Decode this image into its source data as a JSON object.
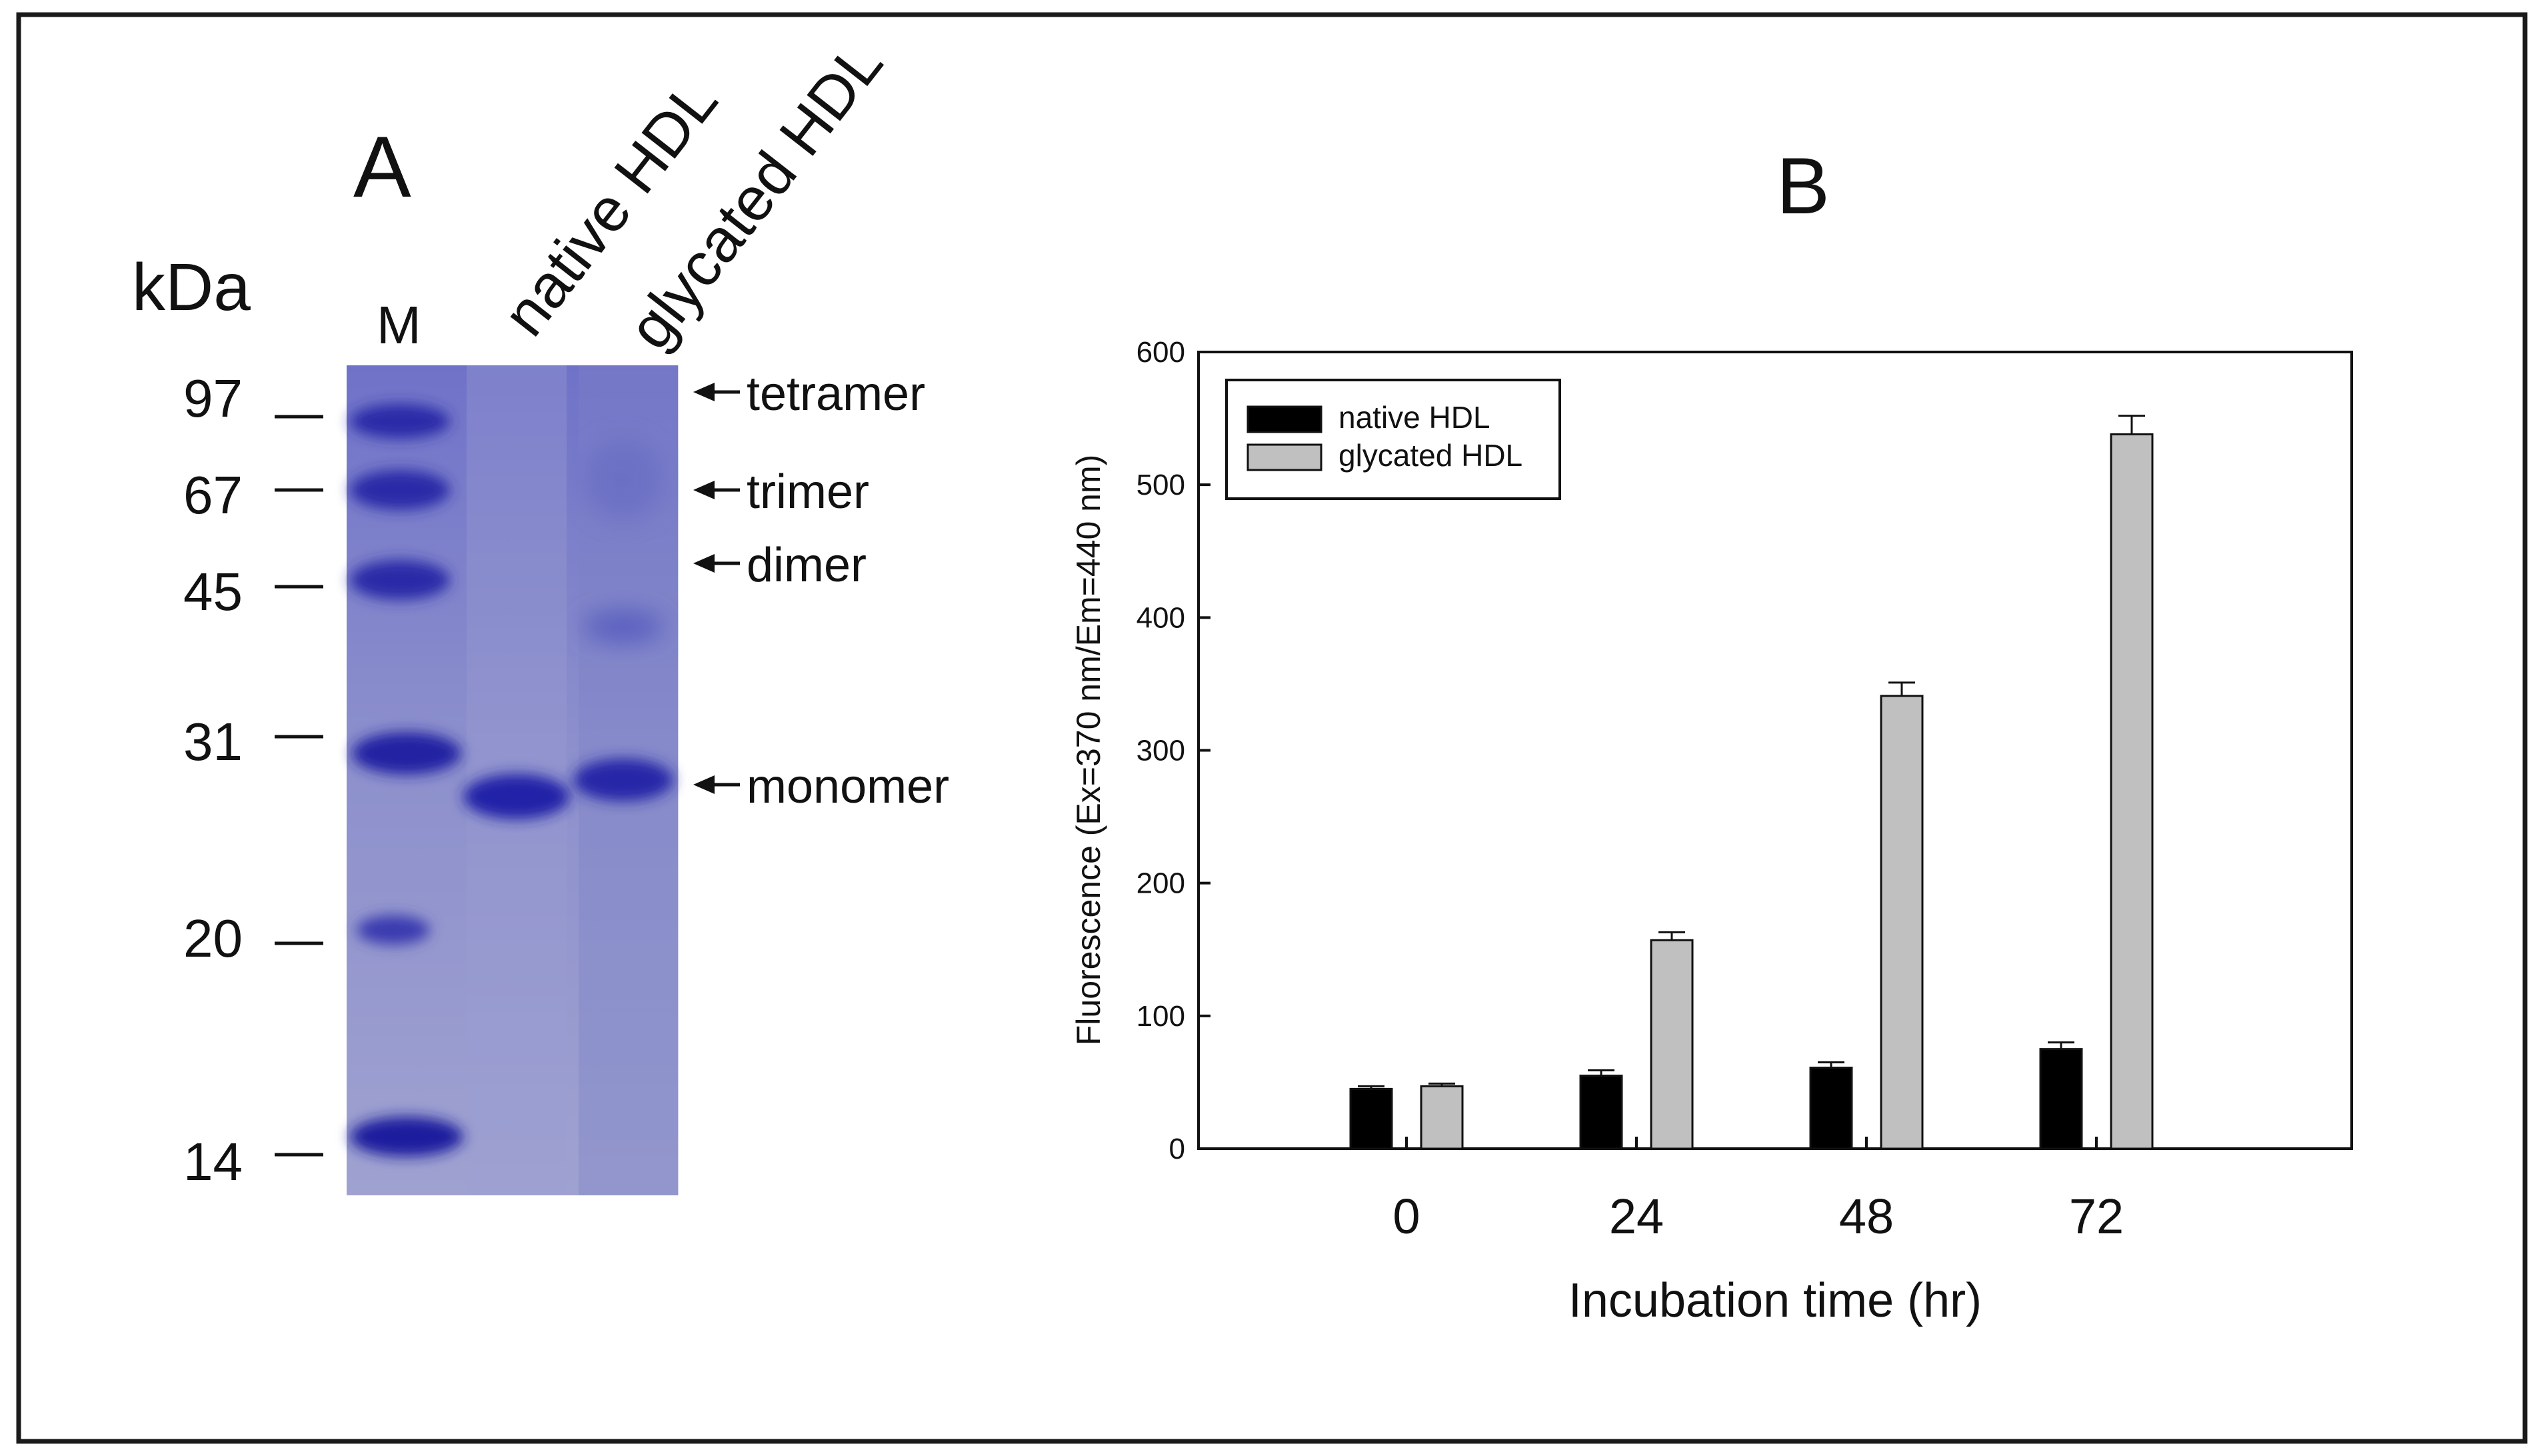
{
  "panel_a": {
    "label": "A",
    "unit_label": "kDa",
    "lanes": [
      "M",
      "native HDL",
      "glycated HDL"
    ],
    "marker_sizes": [
      "97",
      "67",
      "45",
      "31",
      "20",
      "14"
    ],
    "band_annotations": [
      "tetramer",
      "trimer",
      "dimer",
      "monomer"
    ],
    "colors": {
      "gel_background": "#8f93cc",
      "band": "#2f2fb0"
    }
  },
  "panel_b": {
    "label": "B"
  },
  "chart_data": {
    "type": "bar",
    "categories": [
      "0",
      "24",
      "48",
      "72"
    ],
    "series": [
      {
        "name": "native HDL",
        "color": "#000000",
        "values": [
          45,
          55,
          61,
          75
        ],
        "errors": [
          2,
          4,
          4,
          5
        ]
      },
      {
        "name": "glycated HDL",
        "color": "#c0c0c0",
        "values": [
          47,
          157,
          341,
          538
        ],
        "errors": [
          2,
          6,
          10,
          14
        ]
      }
    ],
    "xlabel": "Incubation time (hr)",
    "ylabel": "Fluorescence (Ex=370 nm/Em=440 nm)",
    "ylim": [
      0,
      600
    ],
    "yticks": [
      "0",
      "100",
      "200",
      "300",
      "400",
      "500",
      "600"
    ],
    "legend_position": "top-left",
    "grid": false
  }
}
